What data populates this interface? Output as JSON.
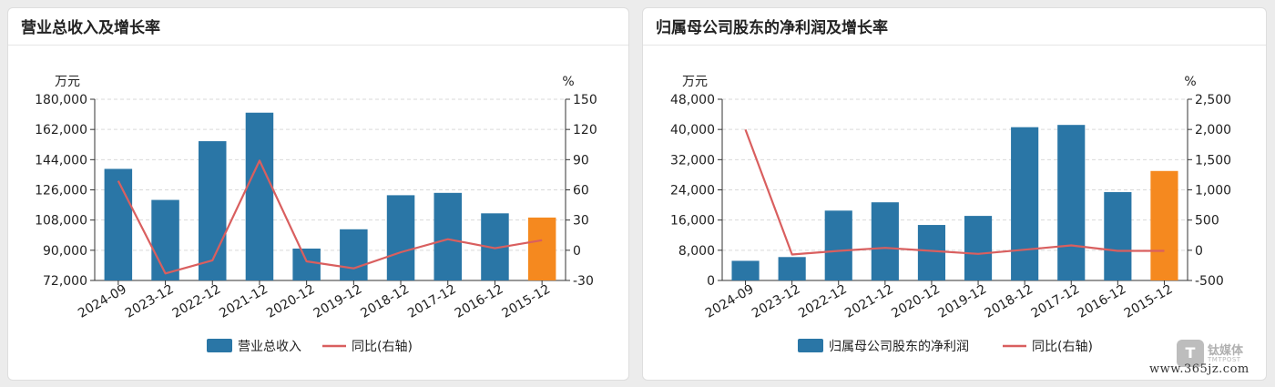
{
  "chart_data": [
    {
      "type": "bar",
      "title": "营业总收入及增长率",
      "categories": [
        "2024-09",
        "2023-12",
        "2022-12",
        "2021-12",
        "2020-12",
        "2019-12",
        "2018-12",
        "2017-12",
        "2016-12",
        "2015-12"
      ],
      "series": [
        {
          "name": "营业总收入",
          "type": "bar",
          "axis": "left",
          "values": [
            138500,
            120000,
            155000,
            172000,
            91000,
            102500,
            122800,
            124200,
            112000,
            109500
          ]
        },
        {
          "name": "同比(右轴)",
          "type": "line",
          "axis": "right",
          "values": [
            69,
            -23,
            -10,
            89,
            -11,
            -18,
            -2,
            11,
            2,
            10
          ]
        }
      ],
      "left_axis": {
        "unit": "万元",
        "ylim": [
          72000,
          180000
        ],
        "ticks": [
          "180,000",
          "162,000",
          "144,000",
          "126,000",
          "108,000",
          "90,000",
          "72,000"
        ]
      },
      "right_axis": {
        "unit": "%",
        "ylim": [
          -30,
          150
        ],
        "ticks": [
          "150",
          "120",
          "90",
          "60",
          "30",
          "0",
          "-30"
        ]
      },
      "highlight_index": 9,
      "grid": true,
      "legend": "bottom"
    },
    {
      "type": "bar",
      "title": "归属母公司股东的净利润及增长率",
      "categories": [
        "2024-09",
        "2023-12",
        "2022-12",
        "2021-12",
        "2020-12",
        "2019-12",
        "2018-12",
        "2017-12",
        "2016-12",
        "2015-12"
      ],
      "series": [
        {
          "name": "归属母公司股东的净利润",
          "type": "bar",
          "axis": "left",
          "values": [
            5200,
            6200,
            18500,
            20700,
            14700,
            17100,
            40600,
            41200,
            23400,
            29000
          ]
        },
        {
          "name": "同比(右轴)",
          "type": "line",
          "axis": "right",
          "values": [
            2000,
            -70,
            -10,
            40,
            -10,
            -60,
            10,
            80,
            -10,
            -10
          ]
        }
      ],
      "left_axis": {
        "unit": "万元",
        "ylim": [
          0,
          48000
        ],
        "ticks": [
          "48,000",
          "40,000",
          "32,000",
          "24,000",
          "16,000",
          "8,000",
          "0"
        ]
      },
      "right_axis": {
        "unit": "%",
        "ylim": [
          -500,
          2500
        ],
        "ticks": [
          "2,500",
          "2,000",
          "1,500",
          "1,000",
          "500",
          "0",
          "-500"
        ]
      },
      "highlight_index": 9,
      "grid": true,
      "legend": "bottom"
    }
  ],
  "colors": {
    "bar": "#2a76a6",
    "highlight": "#f5891f",
    "line": "#d95f5f",
    "grid": "#d9d9d9"
  },
  "watermark": {
    "logo_text": "T",
    "brand": "钛媒体",
    "sub": "TMTPOST",
    "url": "www.365jz.com"
  }
}
